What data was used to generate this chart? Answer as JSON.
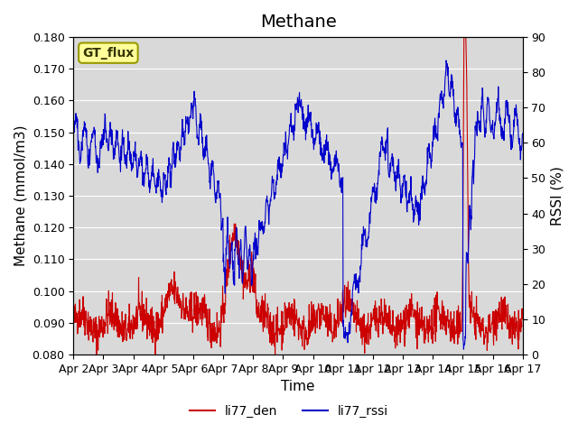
{
  "title": "Methane",
  "xlabel": "Time",
  "ylabel_left": "Methane (mmol/m3)",
  "ylabel_right": "RSSI (%)",
  "ylim_left": [
    0.08,
    0.18
  ],
  "ylim_right": [
    0,
    90
  ],
  "yticks_left": [
    0.08,
    0.09,
    0.1,
    0.11,
    0.12,
    0.13,
    0.14,
    0.15,
    0.16,
    0.17,
    0.18
  ],
  "yticks_right": [
    0,
    10,
    20,
    30,
    40,
    50,
    60,
    70,
    80,
    90
  ],
  "xtick_labels": [
    "Apr 2",
    "Apr 3",
    "Apr 4",
    "Apr 5",
    "Apr 6",
    "Apr 7",
    "Apr 8",
    "Apr 9",
    "Apr 10",
    "Apr 11",
    "Apr 12",
    "Apr 13",
    "Apr 14",
    "Apr 15",
    "Apr 16",
    "Apr 17"
  ],
  "legend_labels": [
    "li77_den",
    "li77_rssi"
  ],
  "legend_colors": [
    "#cc0000",
    "#0000cc"
  ],
  "gt_flux_label": "GT_flux",
  "gt_flux_bg": "#ffff99",
  "gt_flux_border": "#999900",
  "line_color_red": "#cc0000",
  "line_color_blue": "#0000cc",
  "background_color": "#d9d9d9",
  "fig_bg": "#ffffff",
  "title_fontsize": 14,
  "axis_label_fontsize": 11,
  "tick_fontsize": 9
}
